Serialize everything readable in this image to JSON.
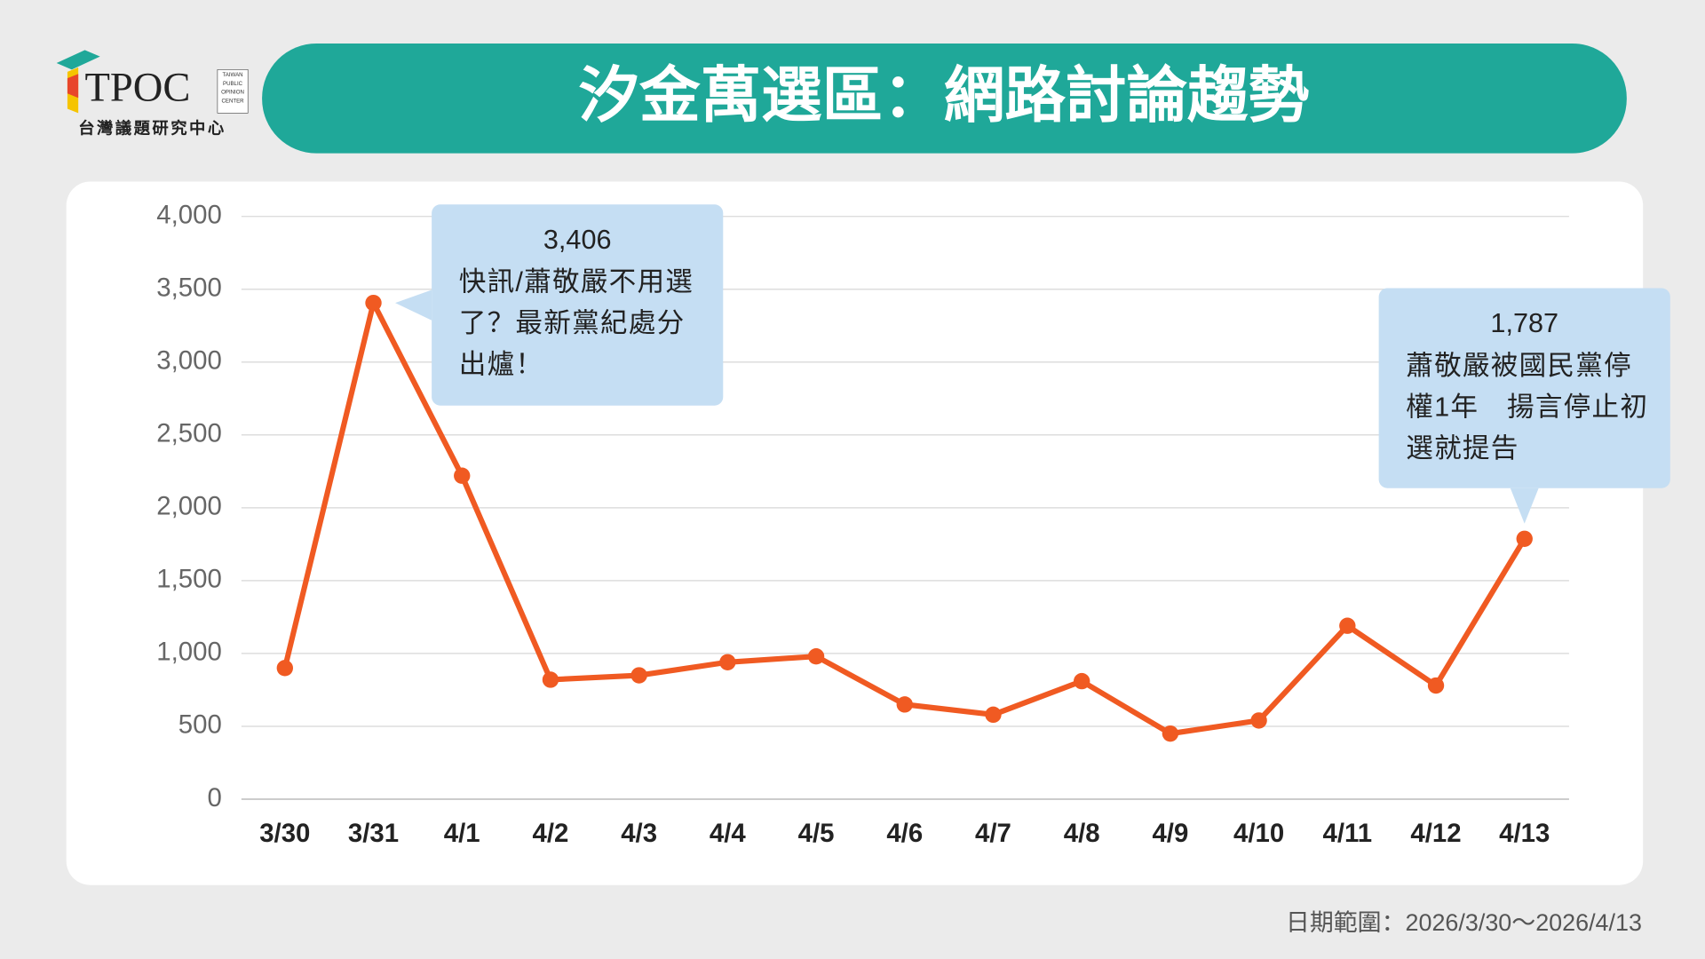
{
  "header": {
    "logo": "TPOC",
    "logo_small": [
      "TAIWAN",
      "PUBLIC",
      "OPINION",
      "CENTER"
    ],
    "logo_subtitle": "台灣議題研究中心"
  },
  "chart_data": {
    "type": "line",
    "title": "汐金萬選區：網路討論趨勢",
    "categories": [
      "3/30",
      "3/31",
      "4/1",
      "4/2",
      "4/3",
      "4/4",
      "4/5",
      "4/6",
      "4/7",
      "4/8",
      "4/9",
      "4/10",
      "4/11",
      "4/12",
      "4/13"
    ],
    "series": [
      {
        "color": "#f05a22",
        "values": [
          900,
          3406,
          2220,
          820,
          850,
          940,
          980,
          650,
          580,
          810,
          450,
          540,
          1190,
          780,
          1787
        ],
        "value_labels": [
          null,
          "3,406",
          null,
          null,
          null,
          null,
          null,
          null,
          null,
          null,
          null,
          null,
          null,
          null,
          "1,787"
        ]
      }
    ],
    "annotations": [
      {
        "category": "3/31",
        "text": [
          "快訊/蕭敬嚴不用選",
          "了？最新黨紀處分",
          "出爐！"
        ]
      },
      {
        "category": "4/13",
        "text": [
          "蕭敬嚴被國民黨停",
          "權1年　揚言停止初",
          "選就提告"
        ]
      }
    ],
    "ylim": [
      0,
      4000
    ],
    "yticks": [
      0,
      500,
      {
        "value": 1000,
        "label": "1,000"
      },
      {
        "value": 1500,
        "label": "1,500"
      },
      {
        "value": 2000,
        "label": "2,000"
      },
      {
        "value": 2500,
        "label": "2,500"
      },
      {
        "value": 3000,
        "label": "3,000"
      },
      {
        "value": 3500,
        "label": "3,500"
      },
      {
        "value": 4000,
        "label": "4,000"
      }
    ],
    "grid": true
  },
  "footer": "日期範圍：2026/3/30～2026/4/13"
}
